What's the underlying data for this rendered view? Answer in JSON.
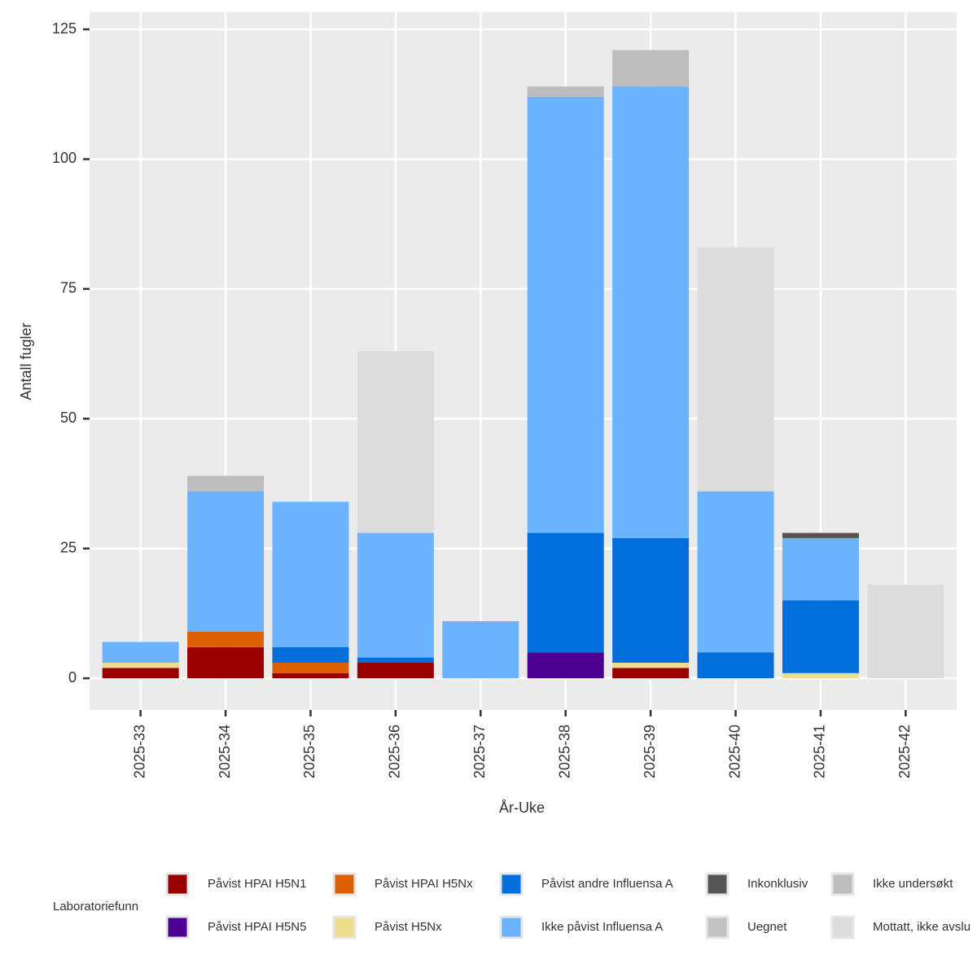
{
  "chart_data": {
    "type": "stacked_bar",
    "x_label": "År-Uke",
    "y_label": "Antall fugler",
    "legend_title": "Laboratoriefunn",
    "categories": [
      "2025-33",
      "2025-34",
      "2025-35",
      "2025-36",
      "2025-37",
      "2025-38",
      "2025-39",
      "2025-40",
      "2025-41",
      "2025-42"
    ],
    "series": [
      {
        "name": "Påvist HPAI H5N1",
        "color": "#990000",
        "values": [
          2,
          6,
          1,
          3,
          0,
          0,
          2,
          0,
          0,
          0
        ]
      },
      {
        "name": "Påvist HPAI H5N5",
        "color": "#4B0092",
        "values": [
          0,
          0,
          0,
          0,
          0,
          5,
          0,
          0,
          0,
          0
        ]
      },
      {
        "name": "Påvist HPAI H5Nx",
        "color": "#DD6100",
        "values": [
          0,
          3,
          2,
          0,
          0,
          0,
          0,
          0,
          0,
          0
        ]
      },
      {
        "name": "Påvist H5Nx",
        "color": "#EEDD8C",
        "values": [
          1,
          0,
          0,
          0,
          0,
          0,
          1,
          0,
          1,
          0
        ]
      },
      {
        "name": "Påvist andre Influensa A",
        "color": "#006EDB",
        "values": [
          0,
          0,
          3,
          1,
          0,
          23,
          24,
          5,
          14,
          0
        ]
      },
      {
        "name": "Ikke påvist Influensa A",
        "color": "#6BB3FF",
        "values": [
          4,
          27,
          28,
          24,
          11,
          84,
          87,
          31,
          12,
          0
        ]
      },
      {
        "name": "Inkonklusiv",
        "color": "#555555",
        "values": [
          0,
          0,
          0,
          0,
          0,
          0,
          0,
          0,
          1,
          0
        ]
      },
      {
        "name": "Uegnet",
        "color": "#C2C2C2",
        "values": [
          0,
          0,
          0,
          0,
          0,
          0,
          0,
          0,
          0,
          0
        ]
      },
      {
        "name": "Ikke undersøkt",
        "color": "#BDBDBD",
        "values": [
          0,
          3,
          0,
          0,
          0,
          2,
          7,
          0,
          0,
          0
        ]
      },
      {
        "name": "Mottatt, ikke avslu",
        "color": "#DCDCDC",
        "values": [
          0,
          0,
          0,
          35,
          0,
          0,
          0,
          47,
          0,
          18
        ]
      }
    ],
    "ylim": [
      -6.1,
      128.3
    ],
    "yticks": [
      0,
      25,
      50,
      75,
      100,
      125
    ],
    "grid": true
  }
}
